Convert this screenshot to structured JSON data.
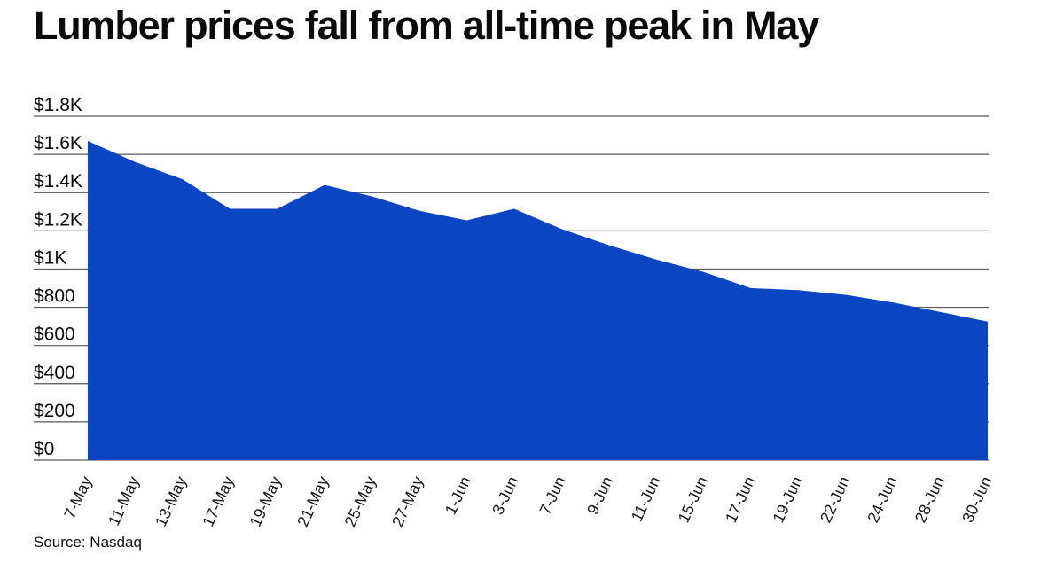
{
  "title": "Lumber prices fall from all-time peak in May",
  "source_note": "Source: Nasdaq",
  "colors": {
    "series": "#0A46C2",
    "gridline": "#55575A",
    "title_text": "#0A0A0A",
    "axis_text": "#1A1A1A",
    "background": "#FFFFFF"
  },
  "chart_data": {
    "type": "area",
    "title": "Lumber prices fall from all-time peak in May",
    "categories": [
      "7-May",
      "11-May",
      "13-May",
      "17-May",
      "19-May",
      "21-May",
      "25-May",
      "27-May",
      "1-Jun",
      "3-Jun",
      "7-Jun",
      "9-Jun",
      "11-Jun",
      "15-Jun",
      "17-Jun",
      "19-Jun",
      "22-Jun",
      "24-Jun",
      "28-Jun",
      "30-Jun"
    ],
    "values": [
      1670,
      1560,
      1470,
      1315,
      1315,
      1440,
      1380,
      1305,
      1255,
      1315,
      1210,
      1125,
      1050,
      985,
      900,
      890,
      865,
      825,
      775,
      725
    ],
    "xlabel": "",
    "ylabel": "",
    "ylim": [
      0,
      1800
    ],
    "ytick_step": 200,
    "ytick_labels": [
      "$0",
      "$200",
      "$400",
      "$600",
      "$800",
      "$1K",
      "$1.2K",
      "$1.4K",
      "$1.6K",
      "$1.8K"
    ],
    "grid": true,
    "legend": false,
    "source": "Source: Nasdaq"
  }
}
